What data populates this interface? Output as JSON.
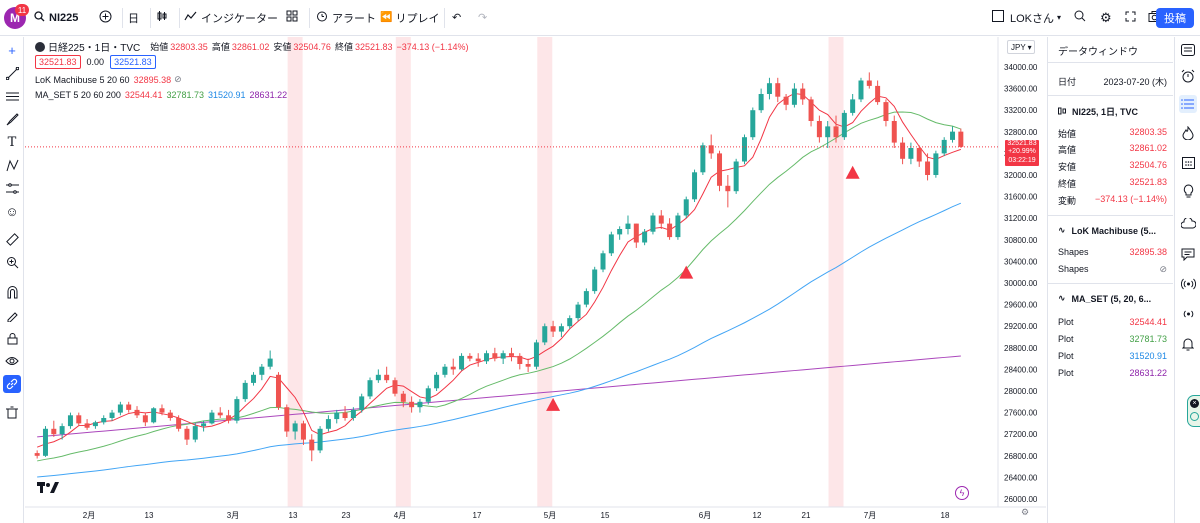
{
  "topbar": {
    "avatar_letter": "M",
    "avatar_badge": "11",
    "symbol": "NI225",
    "interval": "日",
    "indicators_label": "インジケーター",
    "alert_label": "アラート",
    "replay_label": "リプレイ",
    "layout_name": "LOKさん",
    "publish_label": "投稿"
  },
  "legend": {
    "symbol_title": "日経225・1日・TVC",
    "open_k": "始値",
    "open_v": "32803.35",
    "high_k": "高値",
    "high_v": "32861.02",
    "low_k": "安値",
    "low_v": "32504.76",
    "close_k": "終値",
    "close_v": "32521.83",
    "change_v": "−374.13 (−1.14%)",
    "box1": "32521.83",
    "box_mid": "0.00",
    "box2": "32521.83",
    "ind1_name": "LoK Machibuse 5 20 60",
    "ind1_value": "32895.38",
    "ind2_name": "MA_SET 5 20 60 200",
    "ind2_v1": "32544.41",
    "ind2_v2": "32781.73",
    "ind2_v3": "31520.91",
    "ind2_v4": "28631.22"
  },
  "currency": "JPY",
  "price_tag": {
    "price": "32521.83",
    "pct": "+20.99%",
    "countdown": "03:22:19"
  },
  "colors": {
    "up": "#26a69a",
    "down": "#ef5350",
    "ma5": "#f23645",
    "ma20": "#66bb6a",
    "ma60": "#42a5f5",
    "ma200": "#ab47bc",
    "highlight": "#fde6e8",
    "accent": "#2962ff"
  },
  "chart_data": {
    "type": "candlestick",
    "price_axis": [
      "34000.00",
      "33600.00",
      "33200.00",
      "32800.00",
      "32400.00",
      "32000.00",
      "31600.00",
      "31200.00",
      "30800.00",
      "30400.00",
      "30000.00",
      "29600.00",
      "29200.00",
      "28800.00",
      "28400.00",
      "28000.00",
      "27600.00",
      "27200.00",
      "26800.00",
      "26400.00",
      "26000.00"
    ],
    "date_axis": [
      "2月",
      "13",
      "3月",
      "13",
      "23",
      "4月",
      "17",
      "5月",
      "15",
      "6月",
      "12",
      "21",
      "7月",
      "18"
    ],
    "ylim": [
      26000,
      34000
    ],
    "candles": [
      [
        26850,
        26900,
        26750,
        26800
      ],
      [
        26800,
        27350,
        26780,
        27300
      ],
      [
        27300,
        27450,
        27150,
        27200
      ],
      [
        27200,
        27400,
        27100,
        27350
      ],
      [
        27350,
        27600,
        27300,
        27550
      ],
      [
        27550,
        27600,
        27350,
        27400
      ],
      [
        27400,
        27480,
        27280,
        27320
      ],
      [
        27350,
        27450,
        27300,
        27420
      ],
      [
        27420,
        27550,
        27380,
        27500
      ],
      [
        27500,
        27650,
        27450,
        27600
      ],
      [
        27600,
        27800,
        27550,
        27750
      ],
      [
        27750,
        27800,
        27600,
        27650
      ],
      [
        27650,
        27720,
        27500,
        27550
      ],
      [
        27550,
        27600,
        27350,
        27420
      ],
      [
        27420,
        27700,
        27400,
        27680
      ],
      [
        27680,
        27750,
        27550,
        27600
      ],
      [
        27600,
        27650,
        27450,
        27500
      ],
      [
        27500,
        27550,
        27250,
        27300
      ],
      [
        27300,
        27350,
        27000,
        27100
      ],
      [
        27100,
        27400,
        27050,
        27350
      ],
      [
        27350,
        27450,
        27250,
        27400
      ],
      [
        27400,
        27650,
        27380,
        27600
      ],
      [
        27600,
        27700,
        27500,
        27550
      ],
      [
        27550,
        27650,
        27400,
        27450
      ],
      [
        27450,
        27900,
        27400,
        27850
      ],
      [
        27850,
        28200,
        27800,
        28150
      ],
      [
        28150,
        28350,
        28100,
        28300
      ],
      [
        28300,
        28500,
        28200,
        28450
      ],
      [
        28450,
        28750,
        28400,
        28600
      ],
      [
        28300,
        28350,
        27650,
        27700
      ],
      [
        27700,
        27750,
        27150,
        27250
      ],
      [
        27250,
        27450,
        27100,
        27400
      ],
      [
        27400,
        27450,
        27000,
        27100
      ],
      [
        27100,
        27200,
        26700,
        26900
      ],
      [
        26900,
        27350,
        26850,
        27300
      ],
      [
        27300,
        27550,
        27250,
        27480
      ],
      [
        27480,
        27650,
        27400,
        27600
      ],
      [
        27600,
        27720,
        27450,
        27500
      ],
      [
        27500,
        27700,
        27450,
        27650
      ],
      [
        27650,
        27950,
        27600,
        27900
      ],
      [
        27900,
        28250,
        27850,
        28200
      ],
      [
        28200,
        28400,
        28150,
        28300
      ],
      [
        28300,
        28450,
        28150,
        28200
      ],
      [
        28200,
        28250,
        27900,
        27950
      ],
      [
        27950,
        28000,
        27700,
        27800
      ],
      [
        27800,
        27900,
        27600,
        27700
      ],
      [
        27700,
        27850,
        27600,
        27800
      ],
      [
        27800,
        28100,
        27750,
        28050
      ],
      [
        28050,
        28350,
        28000,
        28300
      ],
      [
        28300,
        28500,
        28250,
        28450
      ],
      [
        28450,
        28600,
        28300,
        28400
      ],
      [
        28400,
        28700,
        28380,
        28650
      ],
      [
        28650,
        28700,
        28550,
        28600
      ],
      [
        28600,
        28700,
        28450,
        28550
      ],
      [
        28550,
        28750,
        28500,
        28700
      ],
      [
        28700,
        28800,
        28550,
        28600
      ],
      [
        28600,
        28750,
        28500,
        28700
      ],
      [
        28700,
        28800,
        28550,
        28650
      ],
      [
        28650,
        28700,
        28400,
        28500
      ],
      [
        28500,
        28600,
        28350,
        28450
      ],
      [
        28450,
        28950,
        28400,
        28900
      ],
      [
        28900,
        29250,
        28850,
        29200
      ],
      [
        29200,
        29300,
        29000,
        29100
      ],
      [
        29100,
        29250,
        29000,
        29200
      ],
      [
        29200,
        29400,
        29150,
        29350
      ],
      [
        29350,
        29650,
        29300,
        29600
      ],
      [
        29600,
        29900,
        29550,
        29850
      ],
      [
        29850,
        30300,
        29800,
        30250
      ],
      [
        30250,
        30600,
        30200,
        30550
      ],
      [
        30550,
        30950,
        30500,
        30900
      ],
      [
        30900,
        31050,
        30800,
        31000
      ],
      [
        31000,
        31250,
        30900,
        31100
      ],
      [
        31100,
        31100,
        30650,
        30750
      ],
      [
        30750,
        31000,
        30700,
        30950
      ],
      [
        30950,
        31300,
        30900,
        31250
      ],
      [
        31250,
        31350,
        31000,
        31100
      ],
      [
        31100,
        31200,
        30800,
        30850
      ],
      [
        30850,
        31300,
        30800,
        31250
      ],
      [
        31250,
        31600,
        31200,
        31550
      ],
      [
        31550,
        32100,
        31500,
        32050
      ],
      [
        32050,
        32600,
        32000,
        32550
      ],
      [
        32550,
        32750,
        32300,
        32400
      ],
      [
        32400,
        32450,
        31700,
        31800
      ],
      [
        31800,
        32000,
        31400,
        31700
      ],
      [
        31700,
        32300,
        31650,
        32250
      ],
      [
        32250,
        32750,
        32200,
        32700
      ],
      [
        32700,
        33250,
        32650,
        33200
      ],
      [
        33200,
        33600,
        33150,
        33500
      ],
      [
        33500,
        33800,
        33400,
        33700
      ],
      [
        33700,
        33800,
        33350,
        33450
      ],
      [
        33450,
        33500,
        33200,
        33300
      ],
      [
        33300,
        33700,
        33250,
        33600
      ],
      [
        33600,
        33700,
        33300,
        33400
      ],
      [
        33400,
        33450,
        32900,
        33000
      ],
      [
        33000,
        33100,
        32600,
        32700
      ],
      [
        32700,
        33000,
        32500,
        32900
      ],
      [
        32900,
        33100,
        32600,
        32700
      ],
      [
        32700,
        33200,
        32650,
        33150
      ],
      [
        33150,
        33500,
        33100,
        33400
      ],
      [
        33400,
        33800,
        33350,
        33750
      ],
      [
        33750,
        33900,
        33600,
        33650
      ],
      [
        33650,
        33750,
        33300,
        33350
      ],
      [
        33350,
        33400,
        32900,
        33000
      ],
      [
        33000,
        33100,
        32500,
        32600
      ],
      [
        32600,
        32700,
        32200,
        32300
      ],
      [
        32300,
        32600,
        32200,
        32500
      ],
      [
        32500,
        32550,
        32150,
        32250
      ],
      [
        32250,
        32400,
        31900,
        32000
      ],
      [
        32000,
        32450,
        31950,
        32400
      ],
      [
        32400,
        32700,
        32350,
        32650
      ],
      [
        32650,
        32900,
        32600,
        32803
      ],
      [
        32803,
        32861,
        32504,
        32521
      ]
    ],
    "markers_price": [
      28150,
      30600,
      32450
    ],
    "markers_index": [
      62,
      78,
      98
    ],
    "highlight_index": [
      31,
      44,
      61,
      96
    ]
  },
  "datawindow": {
    "title": "データウィンドウ",
    "date_label": "日付",
    "date_value": "2023-07-20 (木)",
    "symbol_section": "NI225, 1日, TVC",
    "rows": [
      {
        "label": "始値",
        "value": "32803.35"
      },
      {
        "label": "高値",
        "value": "32861.02"
      },
      {
        "label": "安値",
        "value": "32504.76"
      },
      {
        "label": "終値",
        "value": "32521.83"
      },
      {
        "label": "変動",
        "value": "−374.13 (−1.14%)"
      }
    ],
    "ind1_section": "LoK Machibuse (5...",
    "ind1_rows": [
      {
        "label": "Shapes",
        "value": "32895.38"
      },
      {
        "label": "Shapes",
        "value": "⊘"
      }
    ],
    "ind2_section": "MA_SET (5, 20, 6...",
    "ind2_rows": [
      {
        "label": "Plot",
        "value": "32544.41"
      },
      {
        "label": "Plot",
        "value": "32781.73"
      },
      {
        "label": "Plot",
        "value": "31520.91"
      },
      {
        "label": "Plot",
        "value": "28631.22"
      }
    ]
  }
}
